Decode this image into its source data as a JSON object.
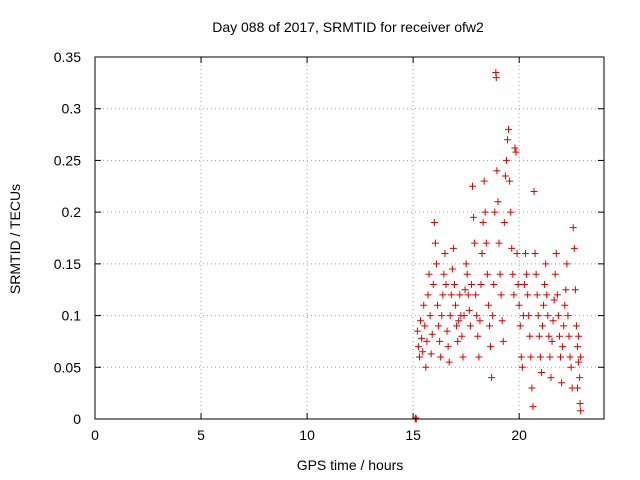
{
  "chart_data": {
    "type": "scatter",
    "title": "Day 088 of 2017, SRMTID for receiver ofw2",
    "xlabel": "GPS time / hours",
    "ylabel": "SRMTID / TECUs",
    "xlim": [
      0,
      24
    ],
    "ylim": [
      0,
      0.35
    ],
    "xticks": [
      0,
      5,
      10,
      15,
      20
    ],
    "xtick_labels": [
      "0",
      "5",
      "10",
      "15",
      "20"
    ],
    "yticks": [
      0,
      0.05,
      0.1,
      0.15,
      0.2,
      0.25,
      0.3,
      0.35
    ],
    "ytick_labels": [
      "0",
      "0.05",
      "0.1",
      "0.15",
      "0.2",
      "0.25",
      "0.3",
      "0.35"
    ],
    "grid": true,
    "marker": "+",
    "series_color": "#dd0000",
    "series": [
      {
        "name": "SRMTID",
        "points": [
          [
            15.1,
            0.0
          ],
          [
            15.12,
            0.001
          ],
          [
            15.15,
            0.0
          ],
          [
            15.2,
            0.085
          ],
          [
            15.25,
            0.07
          ],
          [
            15.3,
            0.06
          ],
          [
            15.35,
            0.095
          ],
          [
            15.4,
            0.078
          ],
          [
            15.45,
            0.065
          ],
          [
            15.5,
            0.11
          ],
          [
            15.55,
            0.09
          ],
          [
            15.6,
            0.05
          ],
          [
            15.65,
            0.075
          ],
          [
            15.7,
            0.12
          ],
          [
            15.75,
            0.14
          ],
          [
            15.8,
            0.1
          ],
          [
            15.85,
            0.063
          ],
          [
            15.9,
            0.082
          ],
          [
            15.95,
            0.13
          ],
          [
            16.0,
            0.19
          ],
          [
            16.05,
            0.17
          ],
          [
            16.1,
            0.15
          ],
          [
            16.15,
            0.11
          ],
          [
            16.2,
            0.09
          ],
          [
            16.25,
            0.075
          ],
          [
            16.3,
            0.06
          ],
          [
            16.35,
            0.1
          ],
          [
            16.4,
            0.12
          ],
          [
            16.45,
            0.14
          ],
          [
            16.5,
            0.16
          ],
          [
            16.55,
            0.13
          ],
          [
            16.6,
            0.085
          ],
          [
            16.65,
            0.07
          ],
          [
            16.7,
            0.055
          ],
          [
            16.75,
            0.1
          ],
          [
            16.8,
            0.12
          ],
          [
            16.85,
            0.145
          ],
          [
            16.9,
            0.165
          ],
          [
            16.95,
            0.13
          ],
          [
            17.0,
            0.11
          ],
          [
            17.05,
            0.09
          ],
          [
            17.1,
            0.075
          ],
          [
            17.15,
            0.095
          ],
          [
            17.2,
            0.12
          ],
          [
            17.25,
            0.1
          ],
          [
            17.3,
            0.08
          ],
          [
            17.35,
            0.06
          ],
          [
            17.4,
            0.1
          ],
          [
            17.45,
            0.125
          ],
          [
            17.5,
            0.15
          ],
          [
            17.55,
            0.14
          ],
          [
            17.6,
            0.12
          ],
          [
            17.65,
            0.105
          ],
          [
            17.7,
            0.09
          ],
          [
            17.75,
            0.13
          ],
          [
            17.8,
            0.225
          ],
          [
            17.85,
            0.195
          ],
          [
            17.9,
            0.17
          ],
          [
            17.95,
            0.12
          ],
          [
            18.0,
            0.1
          ],
          [
            18.05,
            0.08
          ],
          [
            18.1,
            0.06
          ],
          [
            18.15,
            0.095
          ],
          [
            18.2,
            0.13
          ],
          [
            18.25,
            0.16
          ],
          [
            18.3,
            0.19
          ],
          [
            18.35,
            0.23
          ],
          [
            18.4,
            0.2
          ],
          [
            18.45,
            0.17
          ],
          [
            18.5,
            0.14
          ],
          [
            18.55,
            0.11
          ],
          [
            18.6,
            0.09
          ],
          [
            18.65,
            0.07
          ],
          [
            18.7,
            0.04
          ],
          [
            18.75,
            0.1
          ],
          [
            18.8,
            0.13
          ],
          [
            18.85,
            0.2
          ],
          [
            18.9,
            0.335
          ],
          [
            18.92,
            0.33
          ],
          [
            18.95,
            0.24
          ],
          [
            19.0,
            0.21
          ],
          [
            19.05,
            0.17
          ],
          [
            19.1,
            0.14
          ],
          [
            19.15,
            0.12
          ],
          [
            19.2,
            0.095
          ],
          [
            19.25,
            0.075
          ],
          [
            19.3,
            0.19
          ],
          [
            19.35,
            0.235
          ],
          [
            19.4,
            0.25
          ],
          [
            19.45,
            0.27
          ],
          [
            19.5,
            0.28
          ],
          [
            19.55,
            0.23
          ],
          [
            19.6,
            0.2
          ],
          [
            19.65,
            0.165
          ],
          [
            19.7,
            0.14
          ],
          [
            19.75,
            0.12
          ],
          [
            19.8,
            0.262
          ],
          [
            19.85,
            0.258
          ],
          [
            19.9,
            0.16
          ],
          [
            19.95,
            0.13
          ],
          [
            20.0,
            0.11
          ],
          [
            20.05,
            0.09
          ],
          [
            20.1,
            0.06
          ],
          [
            20.15,
            0.05
          ],
          [
            20.2,
            0.1
          ],
          [
            20.25,
            0.13
          ],
          [
            20.3,
            0.16
          ],
          [
            20.35,
            0.14
          ],
          [
            20.4,
            0.12
          ],
          [
            20.45,
            0.1
          ],
          [
            20.5,
            0.08
          ],
          [
            20.55,
            0.06
          ],
          [
            20.6,
            0.03
          ],
          [
            20.65,
            0.012
          ],
          [
            20.7,
            0.22
          ],
          [
            20.75,
            0.16
          ],
          [
            20.8,
            0.14
          ],
          [
            20.85,
            0.12
          ],
          [
            20.9,
            0.1
          ],
          [
            20.95,
            0.08
          ],
          [
            21.0,
            0.06
          ],
          [
            21.05,
            0.045
          ],
          [
            21.1,
            0.09
          ],
          [
            21.15,
            0.11
          ],
          [
            21.2,
            0.13
          ],
          [
            21.25,
            0.15
          ],
          [
            21.3,
            0.12
          ],
          [
            21.35,
            0.1
          ],
          [
            21.4,
            0.08
          ],
          [
            21.45,
            0.06
          ],
          [
            21.5,
            0.04
          ],
          [
            21.55,
            0.075
          ],
          [
            21.6,
            0.095
          ],
          [
            21.65,
            0.115
          ],
          [
            21.7,
            0.14
          ],
          [
            21.75,
            0.16
          ],
          [
            21.8,
            0.12
          ],
          [
            21.85,
            0.1
          ],
          [
            21.9,
            0.08
          ],
          [
            21.95,
            0.06
          ],
          [
            22.0,
            0.035
          ],
          [
            22.05,
            0.07
          ],
          [
            22.1,
            0.09
          ],
          [
            22.15,
            0.11
          ],
          [
            22.2,
            0.125
          ],
          [
            22.25,
            0.15
          ],
          [
            22.3,
            0.1
          ],
          [
            22.35,
            0.08
          ],
          [
            22.4,
            0.06
          ],
          [
            22.45,
            0.05
          ],
          [
            22.5,
            0.03
          ],
          [
            22.55,
            0.185
          ],
          [
            22.6,
            0.165
          ],
          [
            22.65,
            0.125
          ],
          [
            22.7,
            0.09
          ],
          [
            22.75,
            0.07
          ],
          [
            22.8,
            0.055
          ],
          [
            22.85,
            0.04
          ],
          [
            22.87,
            0.015
          ],
          [
            22.9,
            0.008
          ],
          [
            22.75,
            0.03
          ],
          [
            22.8,
            0.08
          ],
          [
            22.9,
            0.06
          ]
        ]
      }
    ]
  }
}
